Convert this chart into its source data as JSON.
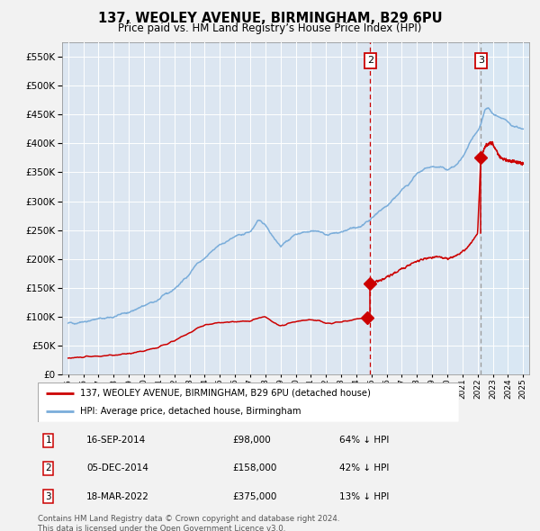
{
  "title1": "137, WEOLEY AVENUE, BIRMINGHAM, B29 6PU",
  "title2": "Price paid vs. HM Land Registry’s House Price Index (HPI)",
  "bg_color": "#f0f0f0",
  "plot_bg_color": "#dce6f1",
  "grid_color": "#ffffff",
  "hpi_color": "#7aadda",
  "price_color": "#cc0000",
  "sale1_date_num": 2014.71,
  "sale1_price": 98000,
  "sale2_date_num": 2014.92,
  "sale2_price": 158000,
  "sale3_date_num": 2022.21,
  "sale3_price": 375000,
  "vline_sale2_x": 2014.92,
  "vline_sale3_x": 2022.21,
  "xlim_left": 1994.6,
  "xlim_right": 2025.4,
  "ylim_bottom": 0,
  "ylim_top": 575000,
  "legend_label_red": "137, WEOLEY AVENUE, BIRMINGHAM, B29 6PU (detached house)",
  "legend_label_blue": "HPI: Average price, detached house, Birmingham",
  "table_rows": [
    {
      "num": "1",
      "date": "16-SEP-2014",
      "price": "£98,000",
      "hpi": "64% ↓ HPI"
    },
    {
      "num": "2",
      "date": "05-DEC-2014",
      "price": "£158,000",
      "hpi": "42% ↓ HPI"
    },
    {
      "num": "3",
      "date": "18-MAR-2022",
      "price": "£375,000",
      "hpi": "13% ↓ HPI"
    }
  ],
  "footnote": "Contains HM Land Registry data © Crown copyright and database right 2024.\nThis data is licensed under the Open Government Licence v3.0.",
  "hpi_anchors": [
    [
      1995.0,
      88000
    ],
    [
      1996.0,
      92000
    ],
    [
      1997.0,
      96000
    ],
    [
      1998.0,
      100000
    ],
    [
      1999.0,
      108000
    ],
    [
      2000.0,
      118000
    ],
    [
      2001.0,
      130000
    ],
    [
      2002.0,
      148000
    ],
    [
      2002.5,
      160000
    ],
    [
      2003.0,
      175000
    ],
    [
      2003.5,
      192000
    ],
    [
      2004.0,
      200000
    ],
    [
      2005.0,
      225000
    ],
    [
      2006.0,
      238000
    ],
    [
      2007.0,
      247000
    ],
    [
      2007.5,
      265000
    ],
    [
      2008.0,
      260000
    ],
    [
      2008.5,
      240000
    ],
    [
      2009.0,
      222000
    ],
    [
      2009.5,
      232000
    ],
    [
      2010.0,
      243000
    ],
    [
      2010.5,
      247000
    ],
    [
      2011.0,
      250000
    ],
    [
      2011.5,
      248000
    ],
    [
      2012.0,
      242000
    ],
    [
      2012.5,
      244000
    ],
    [
      2013.0,
      246000
    ],
    [
      2013.5,
      250000
    ],
    [
      2014.0,
      255000
    ],
    [
      2014.5,
      260000
    ],
    [
      2014.92,
      268000
    ],
    [
      2015.0,
      272000
    ],
    [
      2015.5,
      282000
    ],
    [
      2016.0,
      292000
    ],
    [
      2016.5,
      305000
    ],
    [
      2017.0,
      320000
    ],
    [
      2017.5,
      332000
    ],
    [
      2018.0,
      346000
    ],
    [
      2018.5,
      356000
    ],
    [
      2019.0,
      360000
    ],
    [
      2019.5,
      358000
    ],
    [
      2020.0,
      355000
    ],
    [
      2020.5,
      360000
    ],
    [
      2021.0,
      375000
    ],
    [
      2021.5,
      400000
    ],
    [
      2022.0,
      420000
    ],
    [
      2022.21,
      432000
    ],
    [
      2022.5,
      458000
    ],
    [
      2022.7,
      462000
    ],
    [
      2023.0,
      452000
    ],
    [
      2023.5,
      445000
    ],
    [
      2024.0,
      436000
    ],
    [
      2024.5,
      430000
    ],
    [
      2025.0,
      425000
    ]
  ],
  "red_anchors_seg1": [
    [
      1995.0,
      28000
    ],
    [
      1996.0,
      30000
    ],
    [
      1997.0,
      31500
    ],
    [
      1998.0,
      33000
    ],
    [
      1999.0,
      36000
    ],
    [
      2000.0,
      41000
    ],
    [
      2001.0,
      47000
    ],
    [
      2002.0,
      58000
    ],
    [
      2002.5,
      65000
    ],
    [
      2003.0,
      72000
    ],
    [
      2003.5,
      80000
    ],
    [
      2004.0,
      85000
    ],
    [
      2005.0,
      90000
    ],
    [
      2006.0,
      91000
    ],
    [
      2007.0,
      93000
    ],
    [
      2007.5,
      97000
    ],
    [
      2008.0,
      100000
    ],
    [
      2008.5,
      91000
    ],
    [
      2009.0,
      83000
    ],
    [
      2009.5,
      88000
    ],
    [
      2010.0,
      91000
    ],
    [
      2010.5,
      93000
    ],
    [
      2011.0,
      95000
    ],
    [
      2011.5,
      93000
    ],
    [
      2012.0,
      88000
    ],
    [
      2012.5,
      89000
    ],
    [
      2013.0,
      91000
    ],
    [
      2013.5,
      93000
    ],
    [
      2014.0,
      96000
    ],
    [
      2014.5,
      97000
    ],
    [
      2014.71,
      98000
    ]
  ],
  "red_anchors_seg2": [
    [
      2014.92,
      158000
    ],
    [
      2015.0,
      160000
    ],
    [
      2015.5,
      162000
    ],
    [
      2016.0,
      168000
    ],
    [
      2016.5,
      175000
    ],
    [
      2017.0,
      183000
    ],
    [
      2017.5,
      190000
    ],
    [
      2018.0,
      196000
    ],
    [
      2018.5,
      200000
    ],
    [
      2019.0,
      202000
    ],
    [
      2019.5,
      204000
    ],
    [
      2020.0,
      200000
    ],
    [
      2020.5,
      205000
    ],
    [
      2021.0,
      212000
    ],
    [
      2021.5,
      225000
    ],
    [
      2022.0,
      245000
    ],
    [
      2022.21,
      375000
    ]
  ],
  "red_anchors_seg3": [
    [
      2022.21,
      375000
    ],
    [
      2022.5,
      395000
    ],
    [
      2022.7,
      400000
    ],
    [
      2023.0,
      400000
    ],
    [
      2023.3,
      385000
    ],
    [
      2023.5,
      375000
    ],
    [
      2024.0,
      370000
    ],
    [
      2024.5,
      368000
    ],
    [
      2025.0,
      365000
    ]
  ]
}
